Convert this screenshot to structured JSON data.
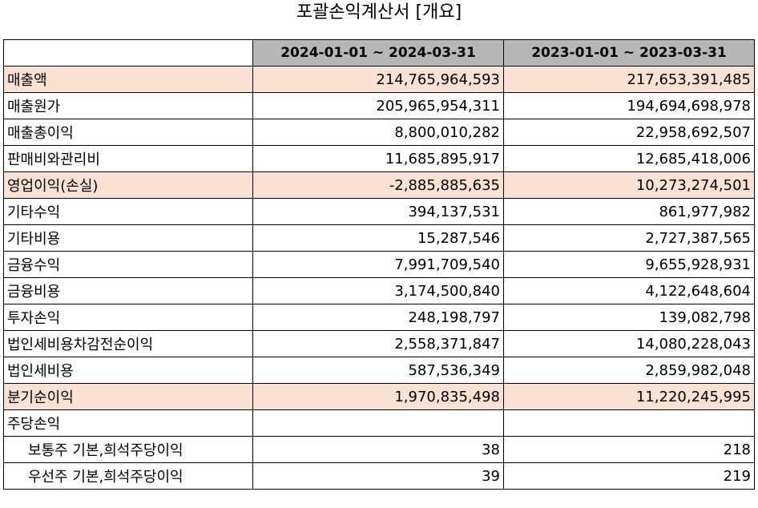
{
  "title": "포괄손익계산서 [개요]",
  "table": {
    "columns": [
      "",
      "2024-01-01 ~ 2024-03-31",
      "2023-01-01 ~ 2023-03-31"
    ],
    "rows": [
      {
        "label": "매출액",
        "v1": "214,765,964,593",
        "v2": "217,653,391,485",
        "highlight": true,
        "indent": false
      },
      {
        "label": "매출원가",
        "v1": "205,965,954,311",
        "v2": "194,694,698,978",
        "highlight": false,
        "indent": false
      },
      {
        "label": "매출총이익",
        "v1": "8,800,010,282",
        "v2": "22,958,692,507",
        "highlight": false,
        "indent": false
      },
      {
        "label": "판매비와관리비",
        "v1": "11,685,895,917",
        "v2": "12,685,418,006",
        "highlight": false,
        "indent": false
      },
      {
        "label": "영업이익(손실)",
        "v1": "-2,885,885,635",
        "v2": "10,273,274,501",
        "highlight": true,
        "indent": false
      },
      {
        "label": "기타수익",
        "v1": "394,137,531",
        "v2": "861,977,982",
        "highlight": false,
        "indent": false
      },
      {
        "label": "기타비용",
        "v1": "15,287,546",
        "v2": "2,727,387,565",
        "highlight": false,
        "indent": false
      },
      {
        "label": "금융수익",
        "v1": "7,991,709,540",
        "v2": "9,655,928,931",
        "highlight": false,
        "indent": false
      },
      {
        "label": "금융비용",
        "v1": "3,174,500,840",
        "v2": "4,122,648,604",
        "highlight": false,
        "indent": false
      },
      {
        "label": "투자손익",
        "v1": "248,198,797",
        "v2": "139,082,798",
        "highlight": false,
        "indent": false
      },
      {
        "label": "법인세비용차감전순이익",
        "v1": "2,558,371,847",
        "v2": "14,080,228,043",
        "highlight": false,
        "indent": false
      },
      {
        "label": "법인세비용",
        "v1": "587,536,349",
        "v2": "2,859,982,048",
        "highlight": false,
        "indent": false
      },
      {
        "label": "분기순이익",
        "v1": "1,970,835,498",
        "v2": "11,220,245,995",
        "highlight": true,
        "indent": false
      },
      {
        "label": "주당손익",
        "v1": "",
        "v2": "",
        "highlight": false,
        "indent": false
      },
      {
        "label": "보통주 기본,희석주당이익",
        "v1": "38",
        "v2": "218",
        "highlight": false,
        "indent": true
      },
      {
        "label": "우선주 기본,희석주당이익",
        "v1": "39",
        "v2": "219",
        "highlight": false,
        "indent": true
      }
    ]
  },
  "colors": {
    "header_bg": "#b7b7b7",
    "highlight_bg": "#fbe2d5",
    "border": "#000000"
  }
}
